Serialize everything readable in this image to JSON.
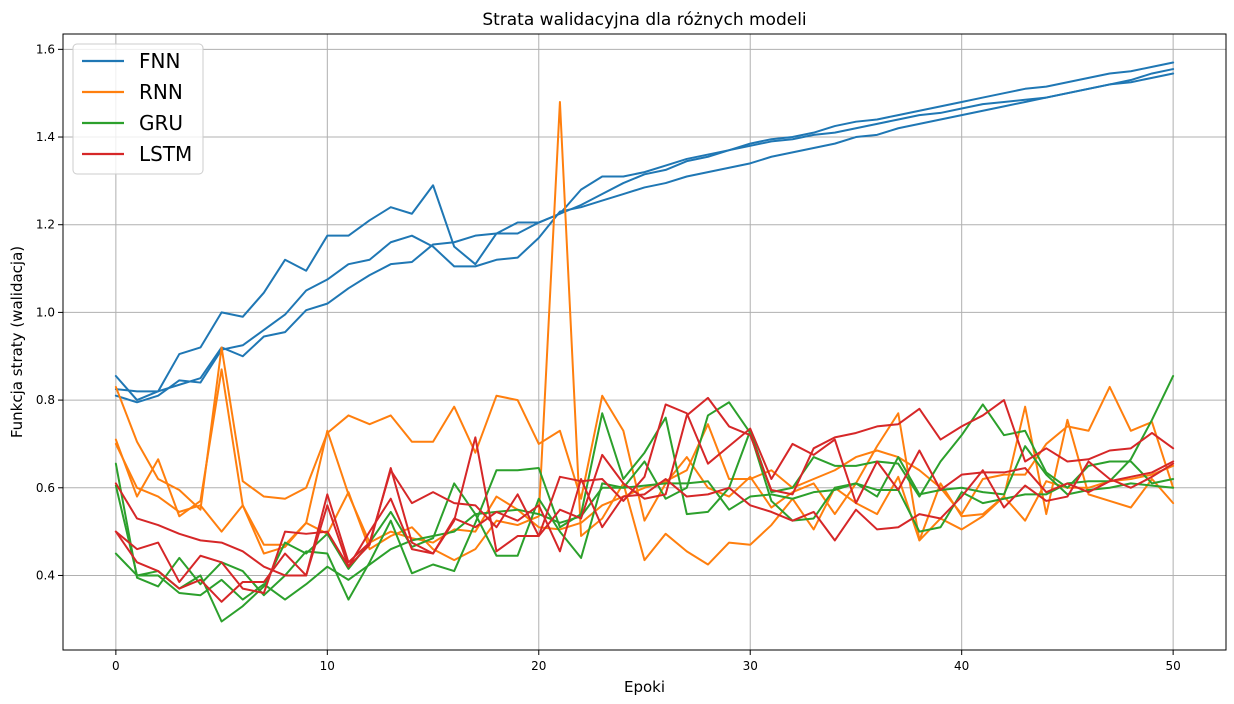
{
  "chart_data": {
    "type": "line",
    "title": "Strata walidacyjna dla różnych modeli",
    "xlabel": "Epoki",
    "ylabel": "Funkcja straty (walidacja)",
    "xlim": [
      -2.5,
      52.5
    ],
    "ylim": [
      0.23,
      1.635
    ],
    "xticks": [
      0,
      10,
      20,
      30,
      40,
      50
    ],
    "yticks": [
      0.4,
      0.6,
      0.8,
      1.0,
      1.2,
      1.4,
      1.6
    ],
    "ytick_labels": [
      "0.4",
      "0.6",
      "0.8",
      "1.0",
      "1.2",
      "1.4",
      "1.6"
    ],
    "grid": true,
    "legend_position": "top-left",
    "legend": [
      {
        "label": "FNN",
        "color": "#1f77b4"
      },
      {
        "label": "RNN",
        "color": "#ff7f0e"
      },
      {
        "label": "GRU",
        "color": "#2ca02c"
      },
      {
        "label": "LSTM",
        "color": "#d62728"
      }
    ],
    "series": [
      {
        "name": "FNN",
        "color": "#1f77b4",
        "values": [
          0.855,
          0.8,
          0.82,
          0.905,
          0.92,
          1.0,
          0.99,
          1.045,
          1.12,
          1.095,
          1.175,
          1.175,
          1.21,
          1.24,
          1.225,
          1.29,
          1.15,
          1.11,
          1.18,
          1.205,
          1.205,
          1.225,
          1.28,
          1.31,
          1.31,
          1.32,
          1.335,
          1.35,
          1.36,
          1.37,
          1.385,
          1.395,
          1.4,
          1.41,
          1.425,
          1.435,
          1.44,
          1.45,
          1.46,
          1.47,
          1.48,
          1.49,
          1.5,
          1.51,
          1.515,
          1.525,
          1.535,
          1.545,
          1.55,
          1.56,
          1.57
        ]
      },
      {
        "name": "FNN",
        "color": "#1f77b4",
        "values": [
          0.825,
          0.82,
          0.82,
          0.835,
          0.85,
          0.92,
          0.9,
          0.945,
          0.955,
          1.005,
          1.02,
          1.055,
          1.085,
          1.11,
          1.115,
          1.155,
          1.16,
          1.175,
          1.18,
          1.18,
          1.205,
          1.225,
          1.245,
          1.27,
          1.295,
          1.315,
          1.325,
          1.345,
          1.355,
          1.37,
          1.38,
          1.39,
          1.395,
          1.405,
          1.41,
          1.42,
          1.43,
          1.44,
          1.45,
          1.455,
          1.465,
          1.475,
          1.48,
          1.485,
          1.49,
          1.5,
          1.51,
          1.52,
          1.53,
          1.545,
          1.555
        ]
      },
      {
        "name": "FNN",
        "color": "#1f77b4",
        "values": [
          0.81,
          0.795,
          0.81,
          0.845,
          0.84,
          0.915,
          0.925,
          0.96,
          0.995,
          1.05,
          1.075,
          1.11,
          1.12,
          1.16,
          1.175,
          1.15,
          1.105,
          1.105,
          1.12,
          1.125,
          1.17,
          1.23,
          1.24,
          1.255,
          1.27,
          1.285,
          1.295,
          1.31,
          1.32,
          1.33,
          1.34,
          1.355,
          1.365,
          1.375,
          1.385,
          1.4,
          1.405,
          1.42,
          1.43,
          1.44,
          1.45,
          1.46,
          1.47,
          1.48,
          1.49,
          1.5,
          1.51,
          1.52,
          1.525,
          1.535,
          1.545
        ]
      },
      {
        "name": "RNN",
        "color": "#ff7f0e",
        "values": [
          0.83,
          0.705,
          0.62,
          0.595,
          0.55,
          0.92,
          0.615,
          0.58,
          0.575,
          0.6,
          0.725,
          0.765,
          0.745,
          0.765,
          0.705,
          0.705,
          0.785,
          0.68,
          0.81,
          0.8,
          0.7,
          0.73,
          0.575,
          0.81,
          0.73,
          0.525,
          0.61,
          0.67,
          0.6,
          0.58,
          0.625,
          0.555,
          0.59,
          0.61,
          0.54,
          0.61,
          0.695,
          0.77,
          0.48,
          0.61,
          0.535,
          0.54,
          0.58,
          0.785,
          0.54,
          0.755,
          0.585,
          0.57,
          0.555,
          0.62,
          0.565
        ]
      },
      {
        "name": "RNN",
        "color": "#ff7f0e",
        "values": [
          0.71,
          0.58,
          0.665,
          0.535,
          0.57,
          0.87,
          0.56,
          0.45,
          0.465,
          0.52,
          0.73,
          0.585,
          0.475,
          0.5,
          0.485,
          0.475,
          0.505,
          0.5,
          0.58,
          0.55,
          0.51,
          0.505,
          0.52,
          0.56,
          0.58,
          0.6,
          0.615,
          0.64,
          0.745,
          0.62,
          0.62,
          0.64,
          0.6,
          0.62,
          0.64,
          0.67,
          0.685,
          0.67,
          0.64,
          0.6,
          0.54,
          0.62,
          0.63,
          0.63,
          0.7,
          0.74,
          0.73,
          0.83,
          0.73,
          0.75,
          0.6
        ]
      },
      {
        "name": "RNN",
        "color": "#ff7f0e",
        "values": [
          0.7,
          0.6,
          0.58,
          0.545,
          0.56,
          0.5,
          0.56,
          0.47,
          0.47,
          0.52,
          0.495,
          0.59,
          0.46,
          0.49,
          0.51,
          0.46,
          0.435,
          0.46,
          0.525,
          0.515,
          0.535,
          1.48,
          0.49,
          0.53,
          0.61,
          0.435,
          0.495,
          0.455,
          0.425,
          0.475,
          0.47,
          0.515,
          0.575,
          0.505,
          0.6,
          0.565,
          0.54,
          0.625,
          0.48,
          0.53,
          0.505,
          0.535,
          0.58,
          0.525,
          0.615,
          0.6,
          0.6,
          0.615,
          0.62,
          0.63,
          0.65
        ]
      },
      {
        "name": "GRU",
        "color": "#2ca02c",
        "values": [
          0.655,
          0.395,
          0.375,
          0.44,
          0.38,
          0.43,
          0.41,
          0.355,
          0.4,
          0.455,
          0.45,
          0.345,
          0.43,
          0.525,
          0.405,
          0.425,
          0.41,
          0.52,
          0.64,
          0.64,
          0.645,
          0.51,
          0.54,
          0.77,
          0.62,
          0.68,
          0.76,
          0.54,
          0.545,
          0.6,
          0.73,
          0.59,
          0.6,
          0.67,
          0.65,
          0.65,
          0.66,
          0.655,
          0.58,
          0.66,
          0.72,
          0.79,
          0.72,
          0.73,
          0.635,
          0.6,
          0.65,
          0.66,
          0.66,
          0.61,
          0.62
        ]
      },
      {
        "name": "GRU",
        "color": "#2ca02c",
        "values": [
          0.605,
          0.4,
          0.41,
          0.37,
          0.4,
          0.295,
          0.33,
          0.375,
          0.475,
          0.45,
          0.495,
          0.415,
          0.475,
          0.545,
          0.465,
          0.485,
          0.61,
          0.54,
          0.445,
          0.445,
          0.575,
          0.5,
          0.44,
          0.61,
          0.6,
          0.66,
          0.575,
          0.6,
          0.765,
          0.795,
          0.725,
          0.57,
          0.525,
          0.53,
          0.6,
          0.61,
          0.58,
          0.67,
          0.585,
          0.595,
          0.6,
          0.59,
          0.585,
          0.695,
          0.63,
          0.585,
          0.595,
          0.6,
          0.61,
          0.605,
          0.6
        ]
      },
      {
        "name": "GRU",
        "color": "#2ca02c",
        "values": [
          0.45,
          0.4,
          0.4,
          0.36,
          0.355,
          0.39,
          0.345,
          0.38,
          0.345,
          0.38,
          0.42,
          0.39,
          0.425,
          0.46,
          0.48,
          0.49,
          0.5,
          0.54,
          0.545,
          0.55,
          0.54,
          0.52,
          0.535,
          0.6,
          0.6,
          0.605,
          0.61,
          0.61,
          0.615,
          0.55,
          0.58,
          0.585,
          0.575,
          0.59,
          0.595,
          0.61,
          0.595,
          0.595,
          0.5,
          0.51,
          0.59,
          0.565,
          0.575,
          0.585,
          0.585,
          0.61,
          0.615,
          0.615,
          0.665,
          0.755,
          0.855
        ]
      },
      {
        "name": "LSTM",
        "color": "#d62728",
        "values": [
          0.61,
          0.53,
          0.515,
          0.495,
          0.48,
          0.475,
          0.455,
          0.42,
          0.4,
          0.4,
          0.585,
          0.43,
          0.475,
          0.64,
          0.565,
          0.59,
          0.565,
          0.56,
          0.51,
          0.585,
          0.49,
          0.55,
          0.53,
          0.675,
          0.61,
          0.575,
          0.585,
          0.765,
          0.805,
          0.74,
          0.72,
          0.595,
          0.585,
          0.69,
          0.715,
          0.725,
          0.74,
          0.745,
          0.78,
          0.71,
          0.74,
          0.765,
          0.8,
          0.66,
          0.69,
          0.66,
          0.665,
          0.685,
          0.69,
          0.725,
          0.69
        ]
      },
      {
        "name": "LSTM",
        "color": "#d62728",
        "values": [
          0.5,
          0.43,
          0.41,
          0.37,
          0.39,
          0.34,
          0.385,
          0.385,
          0.45,
          0.4,
          0.56,
          0.42,
          0.5,
          0.575,
          0.46,
          0.45,
          0.525,
          0.715,
          0.455,
          0.49,
          0.49,
          0.625,
          0.615,
          0.62,
          0.57,
          0.625,
          0.79,
          0.77,
          0.655,
          0.695,
          0.735,
          0.62,
          0.7,
          0.675,
          0.71,
          0.565,
          0.66,
          0.595,
          0.685,
          0.595,
          0.63,
          0.635,
          0.635,
          0.645,
          0.59,
          0.61,
          0.59,
          0.615,
          0.625,
          0.635,
          0.66
        ]
      },
      {
        "name": "LSTM",
        "color": "#d62728",
        "values": [
          0.5,
          0.46,
          0.475,
          0.385,
          0.445,
          0.43,
          0.37,
          0.36,
          0.5,
          0.495,
          0.5,
          0.42,
          0.47,
          0.645,
          0.475,
          0.45,
          0.53,
          0.51,
          0.545,
          0.525,
          0.56,
          0.455,
          0.62,
          0.51,
          0.58,
          0.585,
          0.62,
          0.58,
          0.585,
          0.6,
          0.56,
          0.545,
          0.525,
          0.545,
          0.48,
          0.55,
          0.505,
          0.51,
          0.54,
          0.53,
          0.58,
          0.64,
          0.555,
          0.605,
          0.57,
          0.58,
          0.66,
          0.62,
          0.6,
          0.625,
          0.655
        ]
      }
    ]
  }
}
